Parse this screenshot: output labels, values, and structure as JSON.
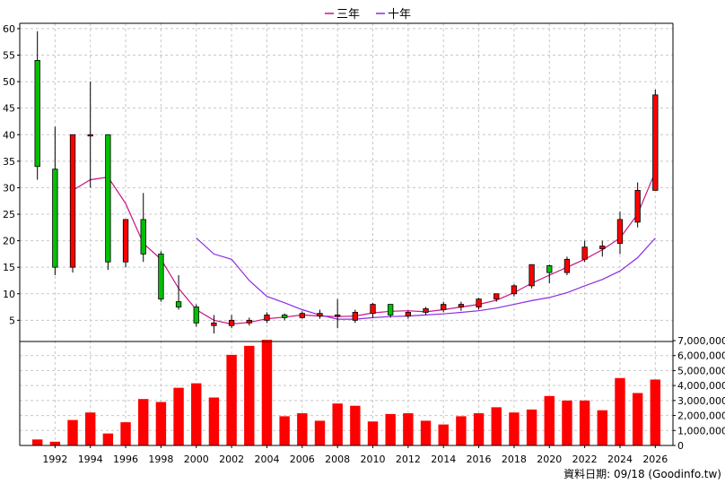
{
  "chart_data": {
    "type": "candlestick",
    "legend": {
      "placement": "top-center",
      "entries": [
        {
          "label": "三年",
          "color": "#c71585"
        },
        {
          "label": "十年",
          "color": "#8a2be2"
        }
      ]
    },
    "colors": {
      "up": "#ff0000",
      "down": "#00c000",
      "volume": "#ff0000",
      "ma3": "#c71585",
      "ma10": "#8a2be2",
      "grid": "#c8c8c8"
    },
    "price_axis": {
      "min": 1,
      "max": 61,
      "ticks": [
        5,
        10,
        15,
        20,
        25,
        30,
        35,
        40,
        45,
        50,
        55,
        60
      ]
    },
    "volume_axis": {
      "min": 0,
      "max": 7000000,
      "ticks": [
        0,
        1000000,
        2000000,
        3000000,
        4000000,
        5000000,
        6000000,
        7000000
      ],
      "tick_labels": [
        "0",
        "1,000,000",
        "2,000,000",
        "3,000,000",
        "4,000,000",
        "5,000,000",
        "6,000,000",
        "7,000,000"
      ]
    },
    "x_axis": {
      "min": 1990,
      "max": 2027,
      "ticks": [
        1992,
        1994,
        1996,
        1998,
        2000,
        2002,
        2004,
        2006,
        2008,
        2010,
        2012,
        2014,
        2016,
        2018,
        2020,
        2022,
        2024,
        2026
      ]
    },
    "candles": [
      {
        "year": 1991,
        "open": 54,
        "high": 59.5,
        "low": 31.5,
        "close": 34
      },
      {
        "year": 1992,
        "open": 33.5,
        "high": 41.5,
        "low": 13.5,
        "close": 15
      },
      {
        "year": 1993,
        "open": 15,
        "high": 40,
        "low": 14,
        "close": 40
      },
      {
        "year": 1994,
        "open": 40,
        "high": 50,
        "low": 30,
        "close": 40
      },
      {
        "year": 1995,
        "open": 40,
        "high": 40,
        "low": 14.5,
        "close": 16
      },
      {
        "year": 1996,
        "open": 16,
        "high": 24,
        "low": 15,
        "close": 24
      },
      {
        "year": 1997,
        "open": 24,
        "high": 29,
        "low": 16,
        "close": 17.5
      },
      {
        "year": 1998,
        "open": 17.5,
        "high": 18,
        "low": 8.5,
        "close": 9
      },
      {
        "year": 1999,
        "open": 8.5,
        "high": 13.5,
        "low": 7,
        "close": 7.5
      },
      {
        "year": 2000,
        "open": 7.5,
        "high": 8,
        "low": 3.8,
        "close": 4.5
      },
      {
        "year": 2001,
        "open": 4,
        "high": 6,
        "low": 2.5,
        "close": 4.5
      },
      {
        "year": 2002,
        "open": 4,
        "high": 6,
        "low": 3.5,
        "close": 5
      },
      {
        "year": 2003,
        "open": 4.5,
        "high": 5.5,
        "low": 4,
        "close": 5
      },
      {
        "year": 2004,
        "open": 5,
        "high": 6.5,
        "low": 4.5,
        "close": 6
      },
      {
        "year": 2005,
        "open": 6,
        "high": 6.3,
        "low": 5,
        "close": 5.5
      },
      {
        "year": 2006,
        "open": 5.5,
        "high": 6.7,
        "low": 5.3,
        "close": 6.3
      },
      {
        "year": 2007,
        "open": 5.8,
        "high": 7,
        "low": 5.3,
        "close": 6.3
      },
      {
        "year": 2008,
        "open": 5.8,
        "high": 9,
        "low": 3.5,
        "close": 6
      },
      {
        "year": 2009,
        "open": 5,
        "high": 7,
        "low": 4.5,
        "close": 6.5
      },
      {
        "year": 2010,
        "open": 6.3,
        "high": 8.3,
        "low": 5.5,
        "close": 8
      },
      {
        "year": 2011,
        "open": 8,
        "high": 8,
        "low": 5.5,
        "close": 6
      },
      {
        "year": 2012,
        "open": 5.8,
        "high": 6.8,
        "low": 5.3,
        "close": 6.5
      },
      {
        "year": 2013,
        "open": 6.5,
        "high": 7.5,
        "low": 6,
        "close": 7.2
      },
      {
        "year": 2014,
        "open": 7,
        "high": 8.5,
        "low": 6.5,
        "close": 8
      },
      {
        "year": 2015,
        "open": 7.5,
        "high": 8.5,
        "low": 6.8,
        "close": 8
      },
      {
        "year": 2016,
        "open": 7.5,
        "high": 9.2,
        "low": 7,
        "close": 9
      },
      {
        "year": 2017,
        "open": 9,
        "high": 10,
        "low": 8.5,
        "close": 10
      },
      {
        "year": 2018,
        "open": 10,
        "high": 11.8,
        "low": 9.5,
        "close": 11.5
      },
      {
        "year": 2019,
        "open": 11.5,
        "high": 15.5,
        "low": 11,
        "close": 15.5
      },
      {
        "year": 2020,
        "open": 15.3,
        "high": 15.5,
        "low": 12,
        "close": 14
      },
      {
        "year": 2021,
        "open": 14,
        "high": 17,
        "low": 13.5,
        "close": 16.5
      },
      {
        "year": 2022,
        "open": 16.5,
        "high": 20,
        "low": 16,
        "close": 18.8
      },
      {
        "year": 2023,
        "open": 18.5,
        "high": 20,
        "low": 17,
        "close": 19
      },
      {
        "year": 2024,
        "open": 19.5,
        "high": 25.5,
        "low": 17.5,
        "close": 24
      },
      {
        "year": 2025,
        "open": 23.5,
        "high": 31,
        "low": 22.5,
        "close": 29.5
      },
      {
        "year": 2026,
        "open": 29.5,
        "high": 48.5,
        "low": 29.5,
        "close": 47.5
      }
    ],
    "volume": [
      {
        "year": 1991,
        "value": 400000
      },
      {
        "year": 1992,
        "value": 250000
      },
      {
        "year": 1993,
        "value": 1700000
      },
      {
        "year": 1994,
        "value": 2200000
      },
      {
        "year": 1995,
        "value": 800000
      },
      {
        "year": 1996,
        "value": 1550000
      },
      {
        "year": 1997,
        "value": 3100000
      },
      {
        "year": 1998,
        "value": 2900000
      },
      {
        "year": 1999,
        "value": 3850000
      },
      {
        "year": 2000,
        "value": 4150000
      },
      {
        "year": 2001,
        "value": 3200000
      },
      {
        "year": 2002,
        "value": 6050000
      },
      {
        "year": 2003,
        "value": 6650000
      },
      {
        "year": 2004,
        "value": 7050000
      },
      {
        "year": 2005,
        "value": 1950000
      },
      {
        "year": 2006,
        "value": 2150000
      },
      {
        "year": 2007,
        "value": 1650000
      },
      {
        "year": 2008,
        "value": 2800000
      },
      {
        "year": 2009,
        "value": 2650000
      },
      {
        "year": 2010,
        "value": 1600000
      },
      {
        "year": 2011,
        "value": 2100000
      },
      {
        "year": 2012,
        "value": 2150000
      },
      {
        "year": 2013,
        "value": 1650000
      },
      {
        "year": 2014,
        "value": 1400000
      },
      {
        "year": 2015,
        "value": 1950000
      },
      {
        "year": 2016,
        "value": 2150000
      },
      {
        "year": 2017,
        "value": 2550000
      },
      {
        "year": 2018,
        "value": 2200000
      },
      {
        "year": 2019,
        "value": 2400000
      },
      {
        "year": 2020,
        "value": 3300000
      },
      {
        "year": 2021,
        "value": 3000000
      },
      {
        "year": 2022,
        "value": 3000000
      },
      {
        "year": 2023,
        "value": 2350000
      },
      {
        "year": 2024,
        "value": 4500000
      },
      {
        "year": 2025,
        "value": 3500000
      },
      {
        "year": 2026,
        "value": 4400000
      }
    ],
    "series": [
      {
        "name": "三年",
        "color": "#c71585",
        "points": [
          [
            1993,
            29.5
          ],
          [
            1994,
            31.5
          ],
          [
            1995,
            32
          ],
          [
            1996,
            27
          ],
          [
            1997,
            19.5
          ],
          [
            1998,
            16.5
          ],
          [
            1999,
            11
          ],
          [
            2000,
            7
          ],
          [
            2001,
            5
          ],
          [
            2002,
            4.3
          ],
          [
            2003,
            4.6
          ],
          [
            2004,
            5.3
          ],
          [
            2005,
            5.6
          ],
          [
            2006,
            6
          ],
          [
            2007,
            5.8
          ],
          [
            2008,
            5.7
          ],
          [
            2009,
            5.8
          ],
          [
            2010,
            6.4
          ],
          [
            2011,
            6.7
          ],
          [
            2012,
            6.8
          ],
          [
            2013,
            6.6
          ],
          [
            2014,
            7
          ],
          [
            2015,
            7.5
          ],
          [
            2016,
            8
          ],
          [
            2017,
            8.8
          ],
          [
            2018,
            10.2
          ],
          [
            2019,
            12
          ],
          [
            2020,
            13.5
          ],
          [
            2021,
            15
          ],
          [
            2022,
            16.5
          ],
          [
            2023,
            18.3
          ],
          [
            2024,
            20.5
          ],
          [
            2025,
            25
          ],
          [
            2026,
            33
          ]
        ]
      },
      {
        "name": "十年",
        "color": "#8a2be2",
        "points": [
          [
            2000,
            20.5
          ],
          [
            2001,
            17.5
          ],
          [
            2002,
            16.5
          ],
          [
            2003,
            12.5
          ],
          [
            2004,
            9.5
          ],
          [
            2005,
            8.3
          ],
          [
            2006,
            7
          ],
          [
            2007,
            6
          ],
          [
            2008,
            5.2
          ],
          [
            2009,
            5.2
          ],
          [
            2010,
            5.5
          ],
          [
            2011,
            5.7
          ],
          [
            2012,
            5.8
          ],
          [
            2013,
            6
          ],
          [
            2014,
            6.2
          ],
          [
            2015,
            6.5
          ],
          [
            2016,
            6.8
          ],
          [
            2017,
            7.3
          ],
          [
            2018,
            8
          ],
          [
            2019,
            8.7
          ],
          [
            2020,
            9.3
          ],
          [
            2021,
            10.2
          ],
          [
            2022,
            11.5
          ],
          [
            2023,
            12.7
          ],
          [
            2024,
            14.3
          ],
          [
            2025,
            16.8
          ],
          [
            2026,
            20.5
          ]
        ]
      }
    ],
    "footer": "資料日期: 09/18  (Goodinfo.tw)"
  }
}
